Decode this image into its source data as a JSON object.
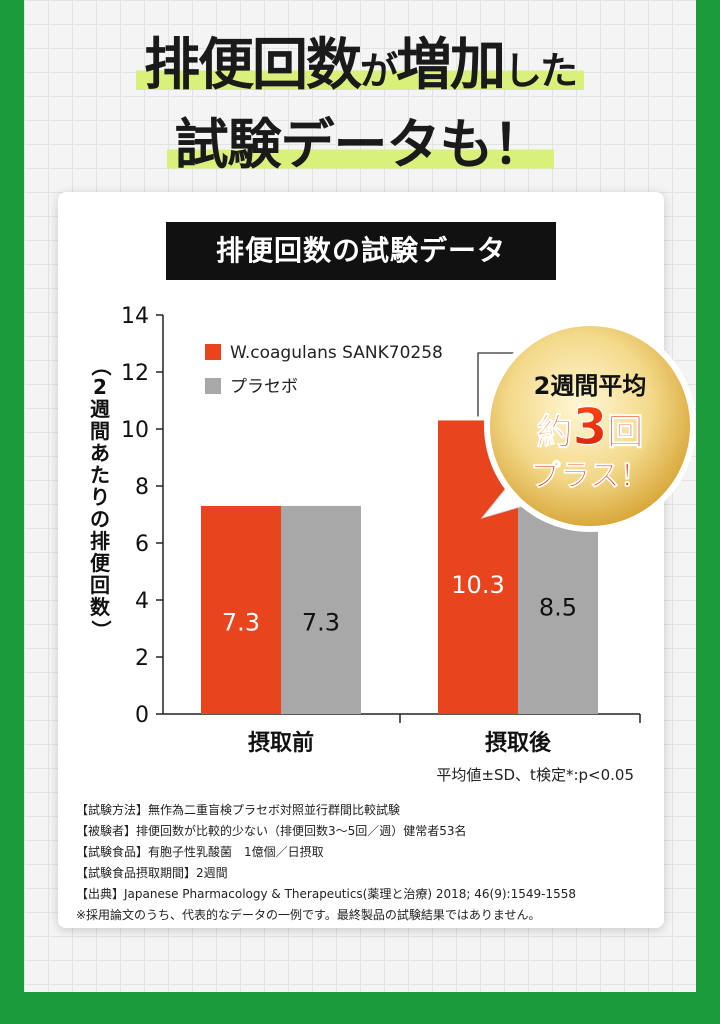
{
  "headline": {
    "line1_a": "排便回数",
    "line1_b": "が",
    "line1_c": "増加",
    "line1_d": "した",
    "line2": "試験データも！"
  },
  "chart_data": {
    "type": "bar",
    "title": "排便回数の試験データ",
    "ylabel": "（2週間あたりの排便回数）",
    "ylim": [
      0,
      14
    ],
    "yticks": [
      0,
      2,
      4,
      6,
      8,
      10,
      12,
      14
    ],
    "categories": [
      "摂取前",
      "摂取後"
    ],
    "series": [
      {
        "name": "W.coagulans SANK70258",
        "values": [
          7.3,
          10.3
        ],
        "color": "#e8441d",
        "labels": [
          "7.3",
          "10.3"
        ]
      },
      {
        "name": "プラセボ",
        "values": [
          7.3,
          8.5
        ],
        "color": "#a8a8a8",
        "labels": [
          "7.3",
          "8.5"
        ]
      }
    ],
    "significance_mark": "*",
    "legend": "top-left",
    "grid": false
  },
  "callout": {
    "line1": "2週間平均",
    "line2_a": "約",
    "line2_b": "3",
    "line2_c": "回",
    "line3": "プラス！"
  },
  "stat_note": "平均値±SD、t検定*:p<0.05",
  "notes": [
    "【試験方法】無作為二重盲検プラセボ対照並行群間比較試験",
    "【被験者】排便回数が比較的少ない（排便回数3～5回／週）健常者53名",
    "【試験食品】有胞子性乳酸菌　1億個／日摂取",
    "【試験食品摂取期間】2週間",
    "【出典】Japanese Pharmacology & Therapeutics(薬理と治療) 2018; 46(9):1549-1558",
    "※採用論文のうち、代表的なデータの一例です。最終製品の試験結果ではありません。"
  ]
}
